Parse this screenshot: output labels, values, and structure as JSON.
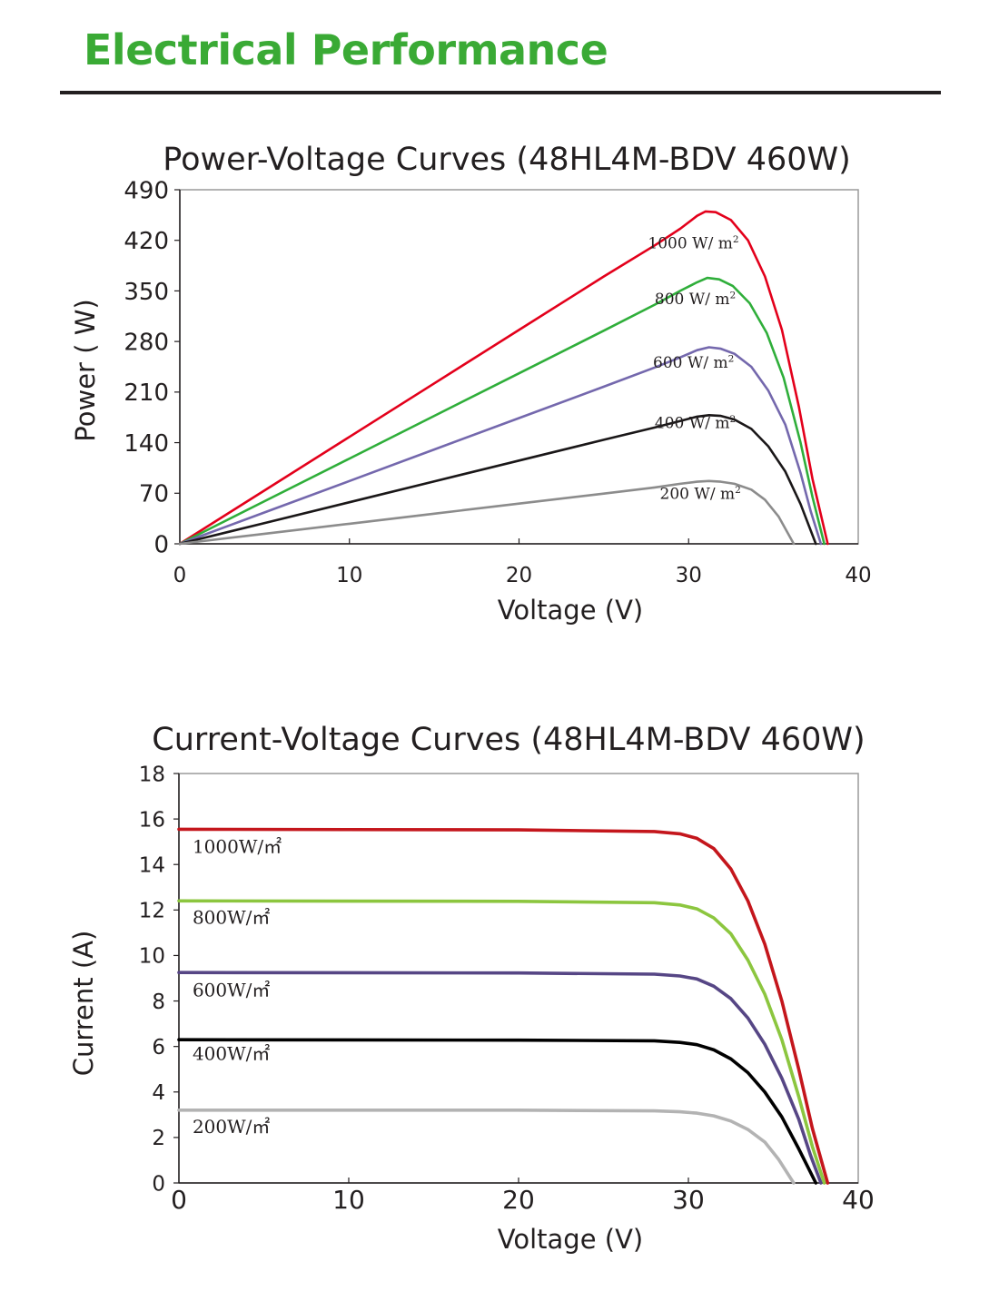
{
  "page": {
    "heading": "Electrical Performance",
    "heading_color": "#3aaa35"
  },
  "chart_data": [
    {
      "type": "line",
      "title": "Power-Voltage Curves (48HL4M-BDV 460W)",
      "xlabel": "Voltage (V)",
      "ylabel": "Power ( W)",
      "xlim": [
        0,
        40
      ],
      "ylim": [
        0,
        490
      ],
      "xticks": [
        0,
        10,
        20,
        30,
        40
      ],
      "yticks": [
        0,
        70,
        140,
        210,
        280,
        350,
        420,
        490
      ],
      "grid": false,
      "series": [
        {
          "name": "1000 W/ m²",
          "color": "#e3001b",
          "points": [
            [
              0,
              0
            ],
            [
              5,
              74
            ],
            [
              10,
              148
            ],
            [
              15,
              222
            ],
            [
              20,
              296
            ],
            [
              25,
              370
            ],
            [
              28,
              413
            ],
            [
              29.5,
              436
            ],
            [
              30.5,
              454
            ],
            [
              31,
              460
            ],
            [
              31.6,
              459
            ],
            [
              32.5,
              448
            ],
            [
              33.5,
              420
            ],
            [
              34.5,
              370
            ],
            [
              35.5,
              296
            ],
            [
              36.5,
              190
            ],
            [
              37.3,
              90
            ],
            [
              38.2,
              0
            ]
          ]
        },
        {
          "name": "800 W/ m²",
          "color": "#2fae3a",
          "points": [
            [
              0,
              0
            ],
            [
              5,
              59
            ],
            [
              10,
              118
            ],
            [
              15,
              177
            ],
            [
              20,
              236
            ],
            [
              25,
              295
            ],
            [
              28,
              331
            ],
            [
              29.5,
              350
            ],
            [
              30.5,
              362
            ],
            [
              31.1,
              368
            ],
            [
              31.8,
              366
            ],
            [
              32.6,
              357
            ],
            [
              33.6,
              333
            ],
            [
              34.6,
              292
            ],
            [
              35.6,
              230
            ],
            [
              36.6,
              140
            ],
            [
              37.3,
              65
            ],
            [
              38,
              0
            ]
          ]
        },
        {
          "name": "600 W/ m²",
          "color": "#7468ad",
          "points": [
            [
              0,
              0
            ],
            [
              5,
              43.5
            ],
            [
              10,
              87
            ],
            [
              15,
              130.5
            ],
            [
              20,
              174
            ],
            [
              25,
              217.5
            ],
            [
              28,
              244
            ],
            [
              29.5,
              258
            ],
            [
              30.5,
              268
            ],
            [
              31.2,
              272
            ],
            [
              31.9,
              270
            ],
            [
              32.7,
              263
            ],
            [
              33.7,
              245
            ],
            [
              34.7,
              212
            ],
            [
              35.7,
              165
            ],
            [
              36.6,
              98
            ],
            [
              37.2,
              45
            ],
            [
              37.8,
              0
            ]
          ]
        },
        {
          "name": "400 W/ m²",
          "color": "#1a1718",
          "points": [
            [
              0,
              0
            ],
            [
              5,
              28.8
            ],
            [
              10,
              57.6
            ],
            [
              15,
              86.4
            ],
            [
              20,
              115.2
            ],
            [
              25,
              144
            ],
            [
              28,
              161
            ],
            [
              29.5,
              170
            ],
            [
              30.5,
              176
            ],
            [
              31.2,
              178
            ],
            [
              31.9,
              177
            ],
            [
              32.7,
              172
            ],
            [
              33.7,
              159
            ],
            [
              34.7,
              135
            ],
            [
              35.7,
              100
            ],
            [
              36.6,
              55
            ],
            [
              37.5,
              0
            ]
          ]
        },
        {
          "name": "200 W/ m²",
          "color": "#8c8c8c",
          "points": [
            [
              0,
              0
            ],
            [
              5,
              13.9
            ],
            [
              10,
              27.8
            ],
            [
              15,
              41.7
            ],
            [
              20,
              55.6
            ],
            [
              25,
              69.5
            ],
            [
              28,
              78
            ],
            [
              29.5,
              83
            ],
            [
              30.5,
              86
            ],
            [
              31.2,
              87
            ],
            [
              31.9,
              86
            ],
            [
              32.7,
              83
            ],
            [
              33.7,
              75
            ],
            [
              34.5,
              61
            ],
            [
              35.3,
              38
            ],
            [
              36.2,
              0
            ]
          ]
        }
      ],
      "labels": [
        {
          "text": "1000 W/ m",
          "sup": "2",
          "x": 27.6,
          "y": 409
        },
        {
          "text": "800 W/ m",
          "sup": "2",
          "x": 28,
          "y": 332
        },
        {
          "text": "600 W/ m",
          "sup": "2",
          "x": 27.9,
          "y": 244
        },
        {
          "text": "400 W/ m",
          "sup": "2",
          "x": 28,
          "y": 160
        },
        {
          "text": "200 W/ m",
          "sup": "2",
          "x": 28.3,
          "y": 62
        }
      ]
    },
    {
      "type": "line",
      "title": "Current-Voltage Curves (48HL4M-BDV 460W)",
      "xlabel": "Voltage (V)",
      "ylabel": "Current (A)",
      "xlim": [
        0,
        40
      ],
      "ylim": [
        0,
        18
      ],
      "xticks": [
        0,
        10,
        20,
        30,
        40
      ],
      "yticks": [
        0,
        2,
        4,
        6,
        8,
        10,
        12,
        14,
        16,
        18
      ],
      "grid": false,
      "series": [
        {
          "name": "1000W/㎡",
          "color": "#c4161c",
          "points": [
            [
              0,
              15.55
            ],
            [
              20,
              15.52
            ],
            [
              28,
              15.45
            ],
            [
              29.5,
              15.35
            ],
            [
              30.5,
              15.15
            ],
            [
              31.5,
              14.7
            ],
            [
              32.5,
              13.8
            ],
            [
              33.5,
              12.4
            ],
            [
              34.5,
              10.5
            ],
            [
              35.5,
              8
            ],
            [
              36.5,
              5
            ],
            [
              37.3,
              2.4
            ],
            [
              38.2,
              0
            ]
          ]
        },
        {
          "name": "800W/㎡",
          "color": "#8cc63f",
          "points": [
            [
              0,
              12.4
            ],
            [
              20,
              12.38
            ],
            [
              28,
              12.32
            ],
            [
              29.5,
              12.22
            ],
            [
              30.5,
              12.05
            ],
            [
              31.5,
              11.65
            ],
            [
              32.5,
              10.95
            ],
            [
              33.5,
              9.8
            ],
            [
              34.5,
              8.3
            ],
            [
              35.5,
              6.3
            ],
            [
              36.5,
              3.8
            ],
            [
              37.3,
              1.6
            ],
            [
              38,
              0
            ]
          ]
        },
        {
          "name": "600W/㎡",
          "color": "#564685",
          "points": [
            [
              0,
              9.25
            ],
            [
              20,
              9.23
            ],
            [
              28,
              9.18
            ],
            [
              29.5,
              9.1
            ],
            [
              30.5,
              8.97
            ],
            [
              31.5,
              8.65
            ],
            [
              32.5,
              8.1
            ],
            [
              33.5,
              7.25
            ],
            [
              34.5,
              6.1
            ],
            [
              35.5,
              4.6
            ],
            [
              36.5,
              2.8
            ],
            [
              37.2,
              1.2
            ],
            [
              37.8,
              0
            ]
          ]
        },
        {
          "name": "400W/㎡",
          "color": "#000000",
          "points": [
            [
              0,
              6.3
            ],
            [
              20,
              6.28
            ],
            [
              28,
              6.25
            ],
            [
              29.5,
              6.18
            ],
            [
              30.5,
              6.08
            ],
            [
              31.5,
              5.85
            ],
            [
              32.5,
              5.45
            ],
            [
              33.5,
              4.85
            ],
            [
              34.5,
              4
            ],
            [
              35.5,
              2.9
            ],
            [
              36.5,
              1.5
            ],
            [
              37.5,
              0
            ]
          ]
        },
        {
          "name": "200W/㎡",
          "color": "#b3b3b3",
          "points": [
            [
              0,
              3.2
            ],
            [
              20,
              3.2
            ],
            [
              28,
              3.17
            ],
            [
              29.5,
              3.13
            ],
            [
              30.5,
              3.07
            ],
            [
              31.5,
              2.95
            ],
            [
              32.5,
              2.72
            ],
            [
              33.5,
              2.35
            ],
            [
              34.5,
              1.8
            ],
            [
              35.3,
              1.05
            ],
            [
              36.2,
              0
            ]
          ]
        }
      ],
      "labels": [
        {
          "text": "1000W/㎡",
          "x": 0.8,
          "y": 14.5
        },
        {
          "text": "800W/㎡",
          "x": 0.8,
          "y": 11.4
        },
        {
          "text": "600W/㎡",
          "x": 0.8,
          "y": 8.2
        },
        {
          "text": "400W/㎡",
          "x": 0.8,
          "y": 5.4
        },
        {
          "text": "200W/㎡",
          "x": 0.8,
          "y": 2.2
        }
      ]
    }
  ]
}
